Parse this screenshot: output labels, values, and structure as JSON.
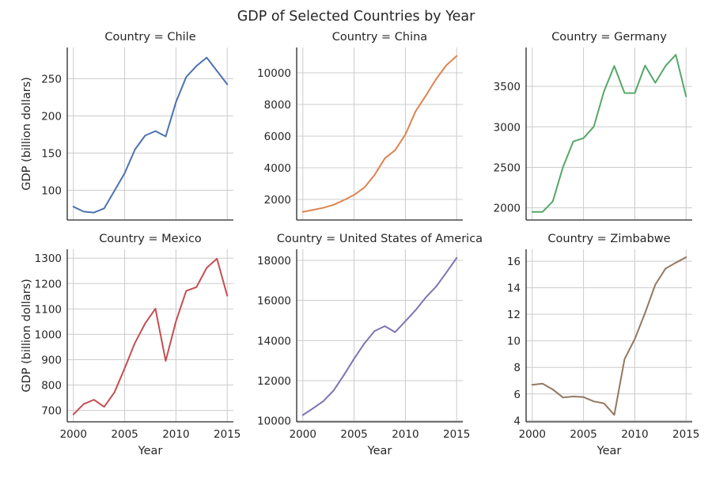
{
  "figure": {
    "title": "GDP of Selected Countries by Year"
  },
  "colors": [
    "#4c72b0",
    "#dd8452",
    "#55a868",
    "#c44e52",
    "#8172b3",
    "#937860"
  ],
  "chart_data": [
    {
      "type": "line",
      "title": "Country = Chile",
      "xlabel": "",
      "ylabel": "GDP (billion dollars)",
      "x": [
        2000,
        2001,
        2002,
        2003,
        2004,
        2005,
        2006,
        2007,
        2008,
        2009,
        2010,
        2011,
        2012,
        2013,
        2014,
        2015
      ],
      "values": [
        77.9,
        71.3,
        70.0,
        75.6,
        99.2,
        122.9,
        154.7,
        173.6,
        179.6,
        172.4,
        218.5,
        252.3,
        267.1,
        278.4,
        260.5,
        242.5
      ],
      "ylim": [
        60,
        292
      ],
      "yticks": [
        100,
        150,
        200,
        250
      ],
      "xlim": [
        1999.4,
        2015.6
      ],
      "xticks": [
        2000,
        2005,
        2010,
        2015
      ],
      "grid": true
    },
    {
      "type": "line",
      "title": "Country = China",
      "xlabel": "",
      "ylabel": "",
      "x": [
        2000,
        2001,
        2002,
        2003,
        2004,
        2005,
        2006,
        2007,
        2008,
        2009,
        2010,
        2011,
        2012,
        2013,
        2014,
        2015
      ],
      "values": [
        1211,
        1339,
        1471,
        1660,
        1955,
        2286,
        2752,
        3552,
        4598,
        5110,
        6101,
        7573,
        8561,
        9607,
        10482,
        11065
      ],
      "ylim": [
        700,
        11600
      ],
      "yticks": [
        2000,
        4000,
        6000,
        8000,
        10000
      ],
      "xlim": [
        1999.4,
        2015.6
      ],
      "xticks": [
        2000,
        2005,
        2010,
        2015
      ],
      "grid": true
    },
    {
      "type": "line",
      "title": "Country = Germany",
      "xlabel": "",
      "ylabel": "",
      "x": [
        2000,
        2001,
        2002,
        2003,
        2004,
        2005,
        2006,
        2007,
        2008,
        2009,
        2010,
        2011,
        2012,
        2013,
        2014,
        2015
      ],
      "values": [
        1950,
        1950,
        2079,
        2505,
        2820,
        2861,
        3002,
        3440,
        3752,
        3418,
        3417,
        3758,
        3544,
        3753,
        3890,
        3376
      ],
      "ylim": [
        1850,
        3980
      ],
      "yticks": [
        2000,
        2500,
        3000,
        3500
      ],
      "xlim": [
        1999.4,
        2015.6
      ],
      "xticks": [
        2000,
        2005,
        2010,
        2015
      ],
      "grid": true
    },
    {
      "type": "line",
      "title": "Country = Mexico",
      "xlabel": "Year",
      "ylabel": "GDP (billion dollars)",
      "x": [
        2000,
        2001,
        2002,
        2003,
        2004,
        2005,
        2006,
        2007,
        2008,
        2009,
        2010,
        2011,
        2012,
        2013,
        2014,
        2015
      ],
      "values": [
        684,
        725,
        742,
        714,
        771,
        866,
        966,
        1043,
        1101,
        895,
        1051,
        1171,
        1186,
        1262,
        1298,
        1152
      ],
      "ylim": [
        655,
        1335
      ],
      "yticks": [
        700,
        800,
        900,
        1000,
        1100,
        1200,
        1300
      ],
      "xlim": [
        1999.4,
        2015.6
      ],
      "xticks": [
        2000,
        2005,
        2010,
        2015
      ],
      "grid": true
    },
    {
      "type": "line",
      "title": "Country = United States of America",
      "xlabel": "Year",
      "ylabel": "",
      "x": [
        2000,
        2001,
        2002,
        2003,
        2004,
        2005,
        2006,
        2007,
        2008,
        2009,
        2010,
        2011,
        2012,
        2013,
        2014,
        2015
      ],
      "values": [
        10285,
        10622,
        10978,
        11511,
        12275,
        13094,
        13856,
        14478,
        14719,
        14419,
        14964,
        15518,
        16155,
        16692,
        17393,
        18121
      ],
      "ylim": [
        9950,
        18550
      ],
      "yticks": [
        10000,
        12000,
        14000,
        16000,
        18000
      ],
      "xlim": [
        1999.4,
        2015.6
      ],
      "xticks": [
        2000,
        2005,
        2010,
        2015
      ],
      "grid": true
    },
    {
      "type": "line",
      "title": "Country = Zimbabwe",
      "xlabel": "Year",
      "ylabel": "",
      "x": [
        2000,
        2001,
        2002,
        2003,
        2004,
        2005,
        2006,
        2007,
        2008,
        2009,
        2010,
        2011,
        2012,
        2013,
        2014,
        2015
      ],
      "values": [
        6.69,
        6.78,
        6.34,
        5.73,
        5.81,
        5.76,
        5.44,
        5.29,
        4.42,
        8.62,
        10.14,
        12.1,
        14.24,
        15.45,
        15.89,
        16.3
      ],
      "ylim": [
        3.9,
        16.9
      ],
      "yticks": [
        4,
        6,
        8,
        10,
        12,
        14,
        16
      ],
      "xlim": [
        1999.4,
        2015.6
      ],
      "xticks": [
        2000,
        2005,
        2010,
        2015
      ],
      "grid": true
    }
  ]
}
